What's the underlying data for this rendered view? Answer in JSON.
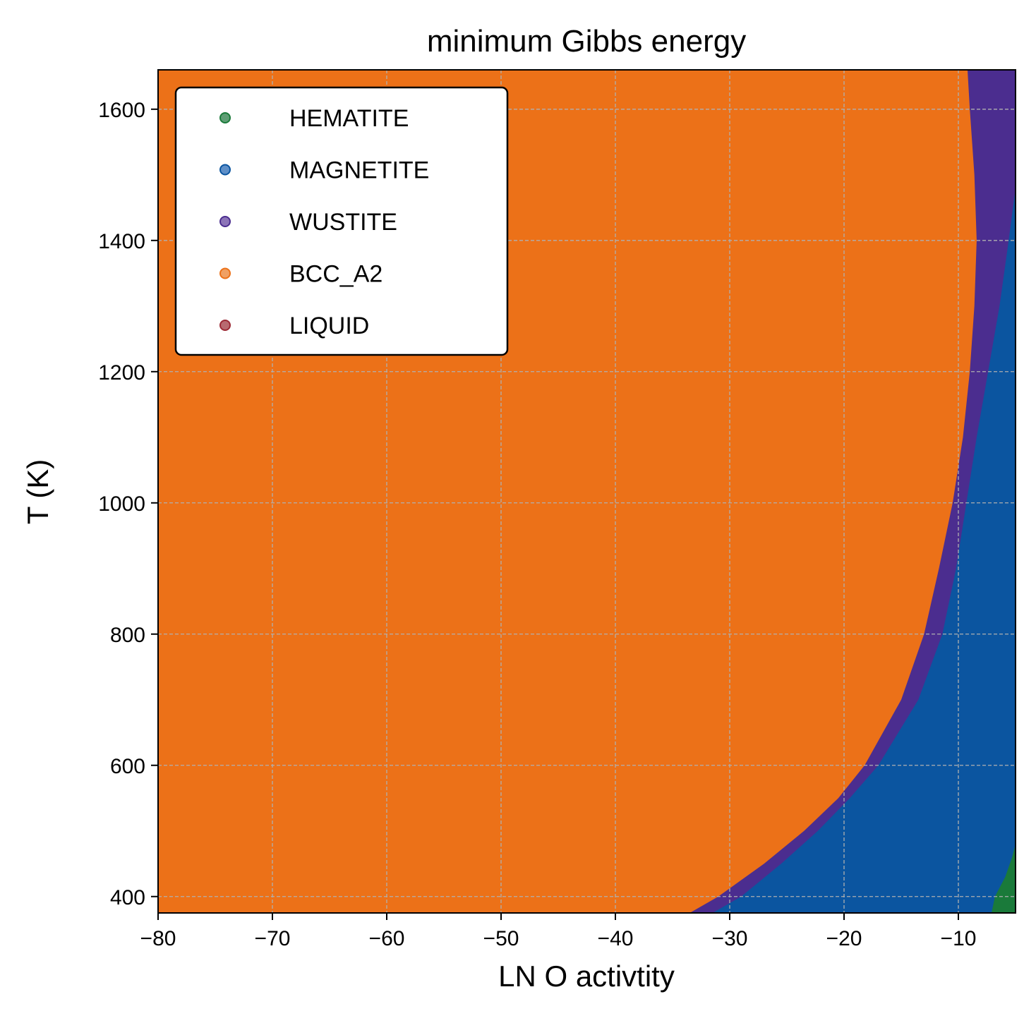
{
  "chart_data": {
    "type": "scatter",
    "title": "minimum Gibbs energy",
    "xlabel": "LN O activtity",
    "ylabel": "T (K)",
    "xlim": [
      -80,
      -5
    ],
    "ylim": [
      375,
      1660
    ],
    "xticks": [
      -80,
      -70,
      -60,
      -50,
      -40,
      -30,
      -20,
      -10
    ],
    "xtick_labels": [
      "−80",
      "−70",
      "−60",
      "−50",
      "−40",
      "−30",
      "−20",
      "−10"
    ],
    "yticks": [
      400,
      600,
      800,
      1000,
      1200,
      1400,
      1600
    ],
    "ytick_labels": [
      "400",
      "600",
      "800",
      "1000",
      "1200",
      "1400",
      "1600"
    ],
    "grid": true,
    "legend_position": "top-left",
    "series": [
      {
        "name": "HEMATITE",
        "color": "#1a7a3a",
        "legend_color": "#5e9e74"
      },
      {
        "name": "MAGNETITE",
        "color": "#0b55a0",
        "legend_color": "#5e8fc8"
      },
      {
        "name": "WUSTITE",
        "color": "#4b2d8f",
        "legend_color": "#8c74b8"
      },
      {
        "name": "BCC_A2",
        "color": "#ec7118",
        "legend_color": "#f0a063"
      },
      {
        "name": "LIQUID",
        "color": "#9c2a35",
        "legend_color": "#b86a70"
      }
    ],
    "boundaries": {
      "bcc_wustite": [
        {
          "T": 375,
          "x": -33.5
        },
        {
          "T": 400,
          "x": -31.0
        },
        {
          "T": 450,
          "x": -27.0
        },
        {
          "T": 500,
          "x": -23.5
        },
        {
          "T": 550,
          "x": -20.5
        },
        {
          "T": 600,
          "x": -18.2
        },
        {
          "T": 700,
          "x": -15.0
        },
        {
          "T": 800,
          "x": -13.0
        },
        {
          "T": 900,
          "x": -11.7
        },
        {
          "T": 1000,
          "x": -10.5
        },
        {
          "T": 1100,
          "x": -9.6
        },
        {
          "T": 1200,
          "x": -9.0
        },
        {
          "T": 1300,
          "x": -8.6
        },
        {
          "T": 1400,
          "x": -8.4
        },
        {
          "T": 1500,
          "x": -8.6
        },
        {
          "T": 1600,
          "x": -9.0
        },
        {
          "T": 1660,
          "x": -9.2
        }
      ],
      "wustite_magnetite": [
        {
          "T": 375,
          "x": -31.5
        },
        {
          "T": 400,
          "x": -29.0
        },
        {
          "T": 450,
          "x": -25.5
        },
        {
          "T": 500,
          "x": -22.3
        },
        {
          "T": 550,
          "x": -19.5
        },
        {
          "T": 600,
          "x": -17.0
        },
        {
          "T": 700,
          "x": -13.5
        },
        {
          "T": 800,
          "x": -11.4
        },
        {
          "T": 900,
          "x": -10.2
        },
        {
          "T": 1000,
          "x": -9.3
        },
        {
          "T": 1100,
          "x": -8.4
        },
        {
          "T": 1200,
          "x": -7.4
        },
        {
          "T": 1300,
          "x": -6.4
        },
        {
          "T": 1400,
          "x": -5.6
        },
        {
          "T": 1480,
          "x": -5.0
        }
      ],
      "magnetite_hematite": [
        {
          "T": 375,
          "x": -7.1
        },
        {
          "T": 400,
          "x": -6.8
        },
        {
          "T": 430,
          "x": -5.9
        },
        {
          "T": 460,
          "x": -5.3
        },
        {
          "T": 480,
          "x": -5.0
        }
      ]
    }
  }
}
